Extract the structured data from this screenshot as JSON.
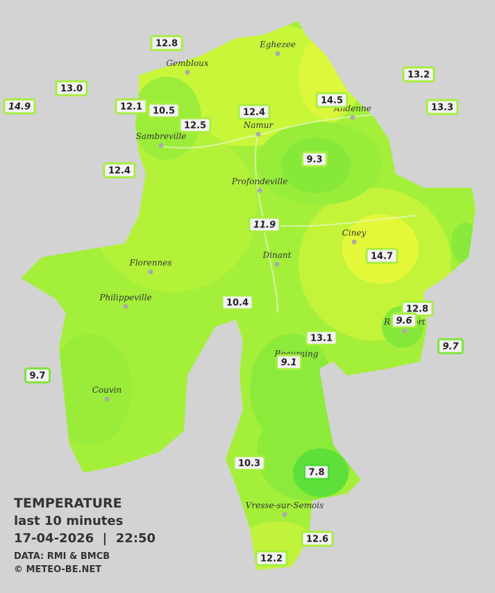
{
  "legend": {
    "title": "TEMPERATURE",
    "subtitle": "last 10 minutes",
    "datetime": "17-04-2026  |  22:50",
    "source": "DATA: RMI & BMCB",
    "copyright": "© METEO-BE.NET"
  },
  "cities": [
    "Eghezee",
    "Gembloux",
    "Andenne",
    "Namur",
    "Sambreville",
    "Profondeville",
    "Ciney",
    "Dinant",
    "Florennes",
    "Philippeville",
    "Rochefort",
    "Beauraing",
    "Couvin",
    "Vresse-sur-Semois"
  ],
  "stations": [
    "12.8",
    "13.0",
    "14.9",
    "12.1",
    "10.5",
    "12.5",
    "12.4",
    "12.4",
    "14.5",
    "13.2",
    "13.3",
    "9.3",
    "11.9",
    "14.7",
    "10.4",
    "12.8",
    "9.6",
    "13.1",
    "9.1",
    "9.7",
    "9.7",
    "10.3",
    "7.8",
    "12.6",
    "12.2"
  ]
}
